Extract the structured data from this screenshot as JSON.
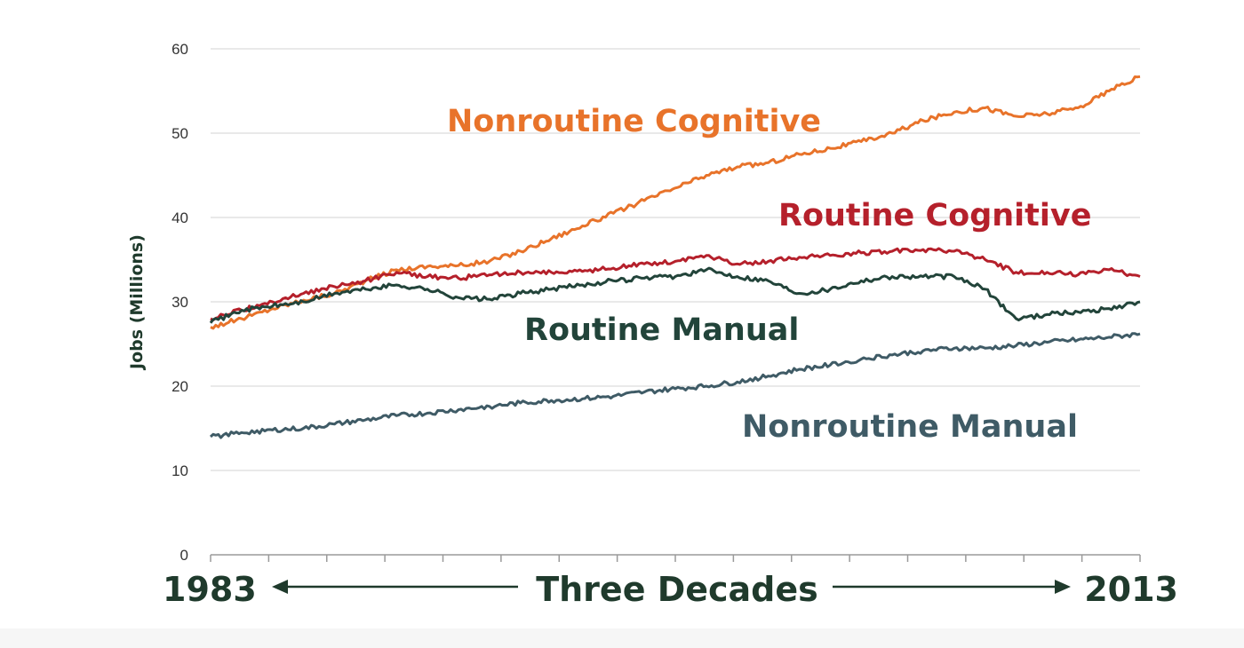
{
  "chart_data": {
    "type": "line",
    "title": "",
    "ylabel": "Jobs (Millions)",
    "xlabel": "Three Decades",
    "x_start_label": "1983",
    "x_end_label": "2013",
    "x_range": [
      1983,
      2013
    ],
    "ylim": [
      0,
      60
    ],
    "y_ticks": [
      "0",
      "10",
      "20",
      "30",
      "40",
      "50",
      "60"
    ],
    "grid": true,
    "legend": "inline-labels",
    "series": [
      {
        "name": "Nonroutine Cognitive",
        "color": "#e8732a",
        "points": [
          [
            1983,
            27.0
          ],
          [
            1984,
            28.0
          ],
          [
            1985,
            29.2
          ],
          [
            1986,
            30.2
          ],
          [
            1987,
            31.0
          ],
          [
            1988,
            32.5
          ],
          [
            1989,
            33.8
          ],
          [
            1990,
            34.2
          ],
          [
            1991,
            34.3
          ],
          [
            1992,
            34.8
          ],
          [
            1993,
            36.0
          ],
          [
            1994,
            37.5
          ],
          [
            1995,
            39.0
          ],
          [
            1996,
            40.5
          ],
          [
            1997,
            42.0
          ],
          [
            1998,
            43.5
          ],
          [
            1999,
            45.0
          ],
          [
            2000,
            46.0
          ],
          [
            2001,
            46.5
          ],
          [
            2002,
            47.5
          ],
          [
            2003,
            48.2
          ],
          [
            2004,
            49.0
          ],
          [
            2005,
            50.0
          ],
          [
            2006,
            51.5
          ],
          [
            2007,
            52.5
          ],
          [
            2008,
            53.0
          ],
          [
            2009,
            52.0
          ],
          [
            2010,
            52.3
          ],
          [
            2011,
            53.0
          ],
          [
            2012,
            55.0
          ],
          [
            2013,
            56.7
          ]
        ]
      },
      {
        "name": "Routine Cognitive",
        "color": "#b5202b",
        "points": [
          [
            1983,
            28.0
          ],
          [
            1984,
            29.0
          ],
          [
            1985,
            30.0
          ],
          [
            1986,
            31.0
          ],
          [
            1987,
            31.8
          ],
          [
            1988,
            32.5
          ],
          [
            1989,
            33.5
          ],
          [
            1990,
            33.0
          ],
          [
            1991,
            32.8
          ],
          [
            1992,
            33.2
          ],
          [
            1993,
            33.5
          ],
          [
            1994,
            33.5
          ],
          [
            1995,
            33.6
          ],
          [
            1996,
            34.0
          ],
          [
            1997,
            34.5
          ],
          [
            1998,
            34.8
          ],
          [
            1999,
            35.5
          ],
          [
            2000,
            34.5
          ],
          [
            2001,
            34.8
          ],
          [
            2002,
            35.3
          ],
          [
            2003,
            35.5
          ],
          [
            2004,
            35.8
          ],
          [
            2005,
            36.0
          ],
          [
            2006,
            36.2
          ],
          [
            2007,
            36.0
          ],
          [
            2008,
            35.0
          ],
          [
            2009,
            33.5
          ],
          [
            2010,
            33.5
          ],
          [
            2011,
            33.2
          ],
          [
            2012,
            33.8
          ],
          [
            2013,
            33.0
          ]
        ]
      },
      {
        "name": "Routine Manual",
        "color": "#22443a",
        "points": [
          [
            1983,
            27.5
          ],
          [
            1984,
            29.0
          ],
          [
            1985,
            29.5
          ],
          [
            1986,
            30.0
          ],
          [
            1987,
            31.0
          ],
          [
            1988,
            31.5
          ],
          [
            1989,
            32.0
          ],
          [
            1990,
            31.5
          ],
          [
            1991,
            30.5
          ],
          [
            1992,
            30.3
          ],
          [
            1993,
            31.0
          ],
          [
            1994,
            31.5
          ],
          [
            1995,
            32.0
          ],
          [
            1996,
            32.5
          ],
          [
            1997,
            32.8
          ],
          [
            1998,
            33.0
          ],
          [
            1999,
            33.8
          ],
          [
            2000,
            33.0
          ],
          [
            2001,
            32.5
          ],
          [
            2002,
            31.0
          ],
          [
            2003,
            31.5
          ],
          [
            2004,
            32.5
          ],
          [
            2005,
            33.0
          ],
          [
            2006,
            33.0
          ],
          [
            2007,
            33.0
          ],
          [
            2008,
            31.5
          ],
          [
            2009,
            28.0
          ],
          [
            2010,
            28.5
          ],
          [
            2011,
            28.8
          ],
          [
            2012,
            29.2
          ],
          [
            2013,
            30.0
          ]
        ]
      },
      {
        "name": "Nonroutine Manual",
        "color": "#3f5b66",
        "points": [
          [
            1983,
            14.0
          ],
          [
            1984,
            14.5
          ],
          [
            1985,
            14.8
          ],
          [
            1986,
            15.0
          ],
          [
            1987,
            15.5
          ],
          [
            1988,
            16.0
          ],
          [
            1989,
            16.5
          ],
          [
            1990,
            16.8
          ],
          [
            1991,
            17.2
          ],
          [
            1992,
            17.6
          ],
          [
            1993,
            18.0
          ],
          [
            1994,
            18.3
          ],
          [
            1995,
            18.5
          ],
          [
            1996,
            18.8
          ],
          [
            1997,
            19.3
          ],
          [
            1998,
            19.7
          ],
          [
            1999,
            20.0
          ],
          [
            2000,
            20.5
          ],
          [
            2001,
            21.2
          ],
          [
            2002,
            22.0
          ],
          [
            2003,
            22.5
          ],
          [
            2004,
            23.2
          ],
          [
            2005,
            23.7
          ],
          [
            2006,
            24.2
          ],
          [
            2007,
            24.5
          ],
          [
            2008,
            24.5
          ],
          [
            2009,
            24.8
          ],
          [
            2010,
            25.2
          ],
          [
            2011,
            25.5
          ],
          [
            2012,
            25.8
          ],
          [
            2013,
            26.2
          ]
        ]
      }
    ]
  }
}
